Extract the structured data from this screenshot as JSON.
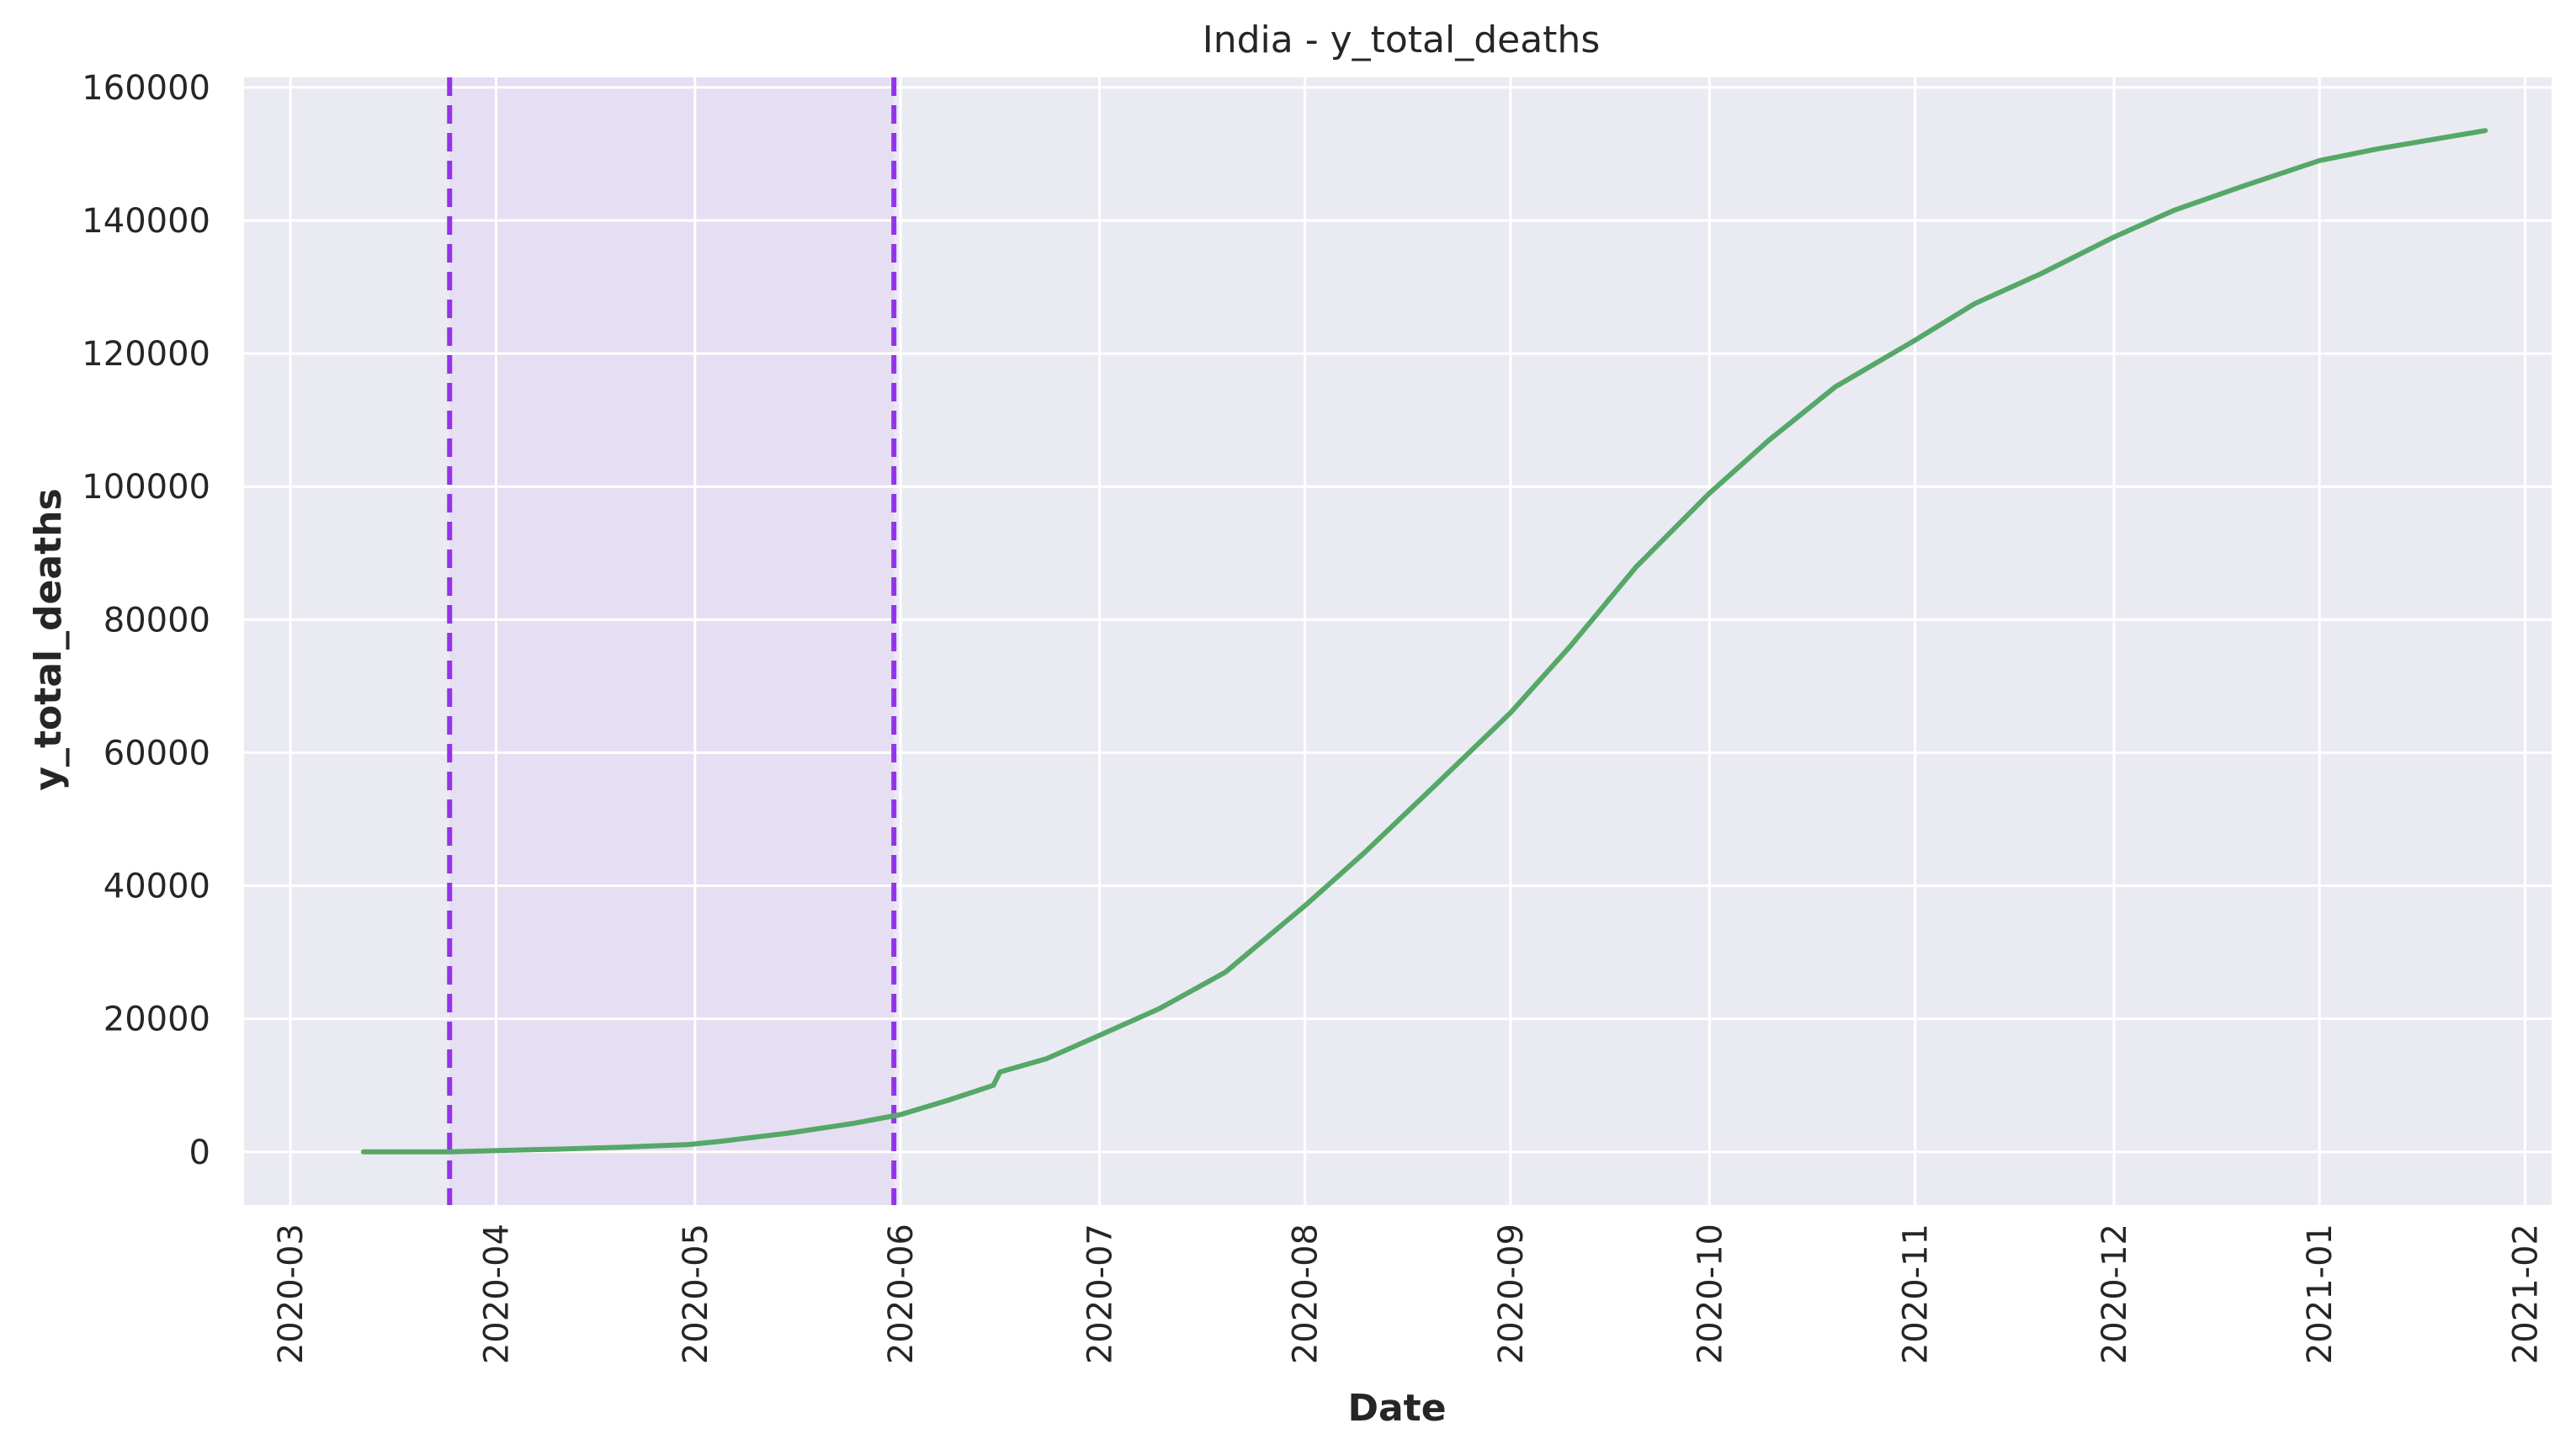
{
  "chart_data": {
    "type": "line",
    "title": "India - y_total_deaths",
    "xlabel": "Date",
    "ylabel": "y_total_deaths",
    "x_ticks": [
      "2020-03",
      "2020-04",
      "2020-05",
      "2020-06",
      "2020-07",
      "2020-08",
      "2020-09",
      "2020-10",
      "2020-11",
      "2020-12",
      "2021-01",
      "2021-02"
    ],
    "y_ticks": [
      0,
      20000,
      40000,
      60000,
      80000,
      100000,
      120000,
      140000,
      160000
    ],
    "xlim": [
      "2020-02-23",
      "2021-02-05"
    ],
    "ylim": [
      -8000,
      161500
    ],
    "grid": true,
    "background": "#eaeaf2",
    "series": [
      {
        "color": "#55a868",
        "x": [
          "2020-03-12",
          "2020-03-25",
          "2020-04-01",
          "2020-04-10",
          "2020-04-20",
          "2020-04-30",
          "2020-05-05",
          "2020-05-15",
          "2020-05-25",
          "2020-06-01",
          "2020-06-08",
          "2020-06-15",
          "2020-06-16",
          "2020-06-23",
          "2020-07-01",
          "2020-07-10",
          "2020-07-20",
          "2020-08-01",
          "2020-08-10",
          "2020-08-20",
          "2020-09-01",
          "2020-09-10",
          "2020-09-20",
          "2020-10-01",
          "2020-10-10",
          "2020-10-20",
          "2020-11-01",
          "2020-11-10",
          "2020-11-20",
          "2020-12-01",
          "2020-12-10",
          "2020-12-20",
          "2021-01-01",
          "2021-01-10",
          "2021-01-20",
          "2021-01-26"
        ],
        "y": [
          0,
          0,
          200,
          400,
          700,
          1100,
          1600,
          2800,
          4300,
          5600,
          7700,
          10000,
          12000,
          14000,
          17500,
          21500,
          27000,
          37000,
          45000,
          54500,
          66000,
          76000,
          88000,
          99000,
          107000,
          115000,
          122000,
          127500,
          132000,
          137500,
          141500,
          145000,
          149000,
          150800,
          152500,
          153500
        ]
      }
    ],
    "shaded_regions": [
      {
        "start": "2020-03-25",
        "end": "2020-05-31",
        "color": "#e4d9f3"
      }
    ],
    "vertical_lines": [
      {
        "x": "2020-03-25",
        "style": "dashed",
        "color": "#9333ea"
      },
      {
        "x": "2020-05-31",
        "style": "dashed",
        "color": "#9333ea"
      }
    ]
  }
}
